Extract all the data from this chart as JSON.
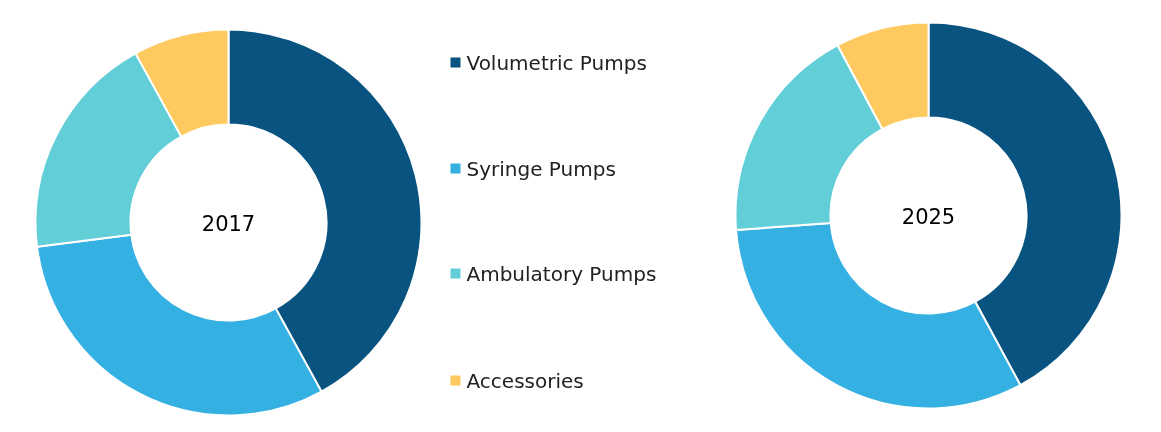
{
  "chart_data": {
    "type": "donut",
    "categories": [
      "Volumetric Pumps",
      "Syringe Pumps",
      "Ambulatory Pumps",
      "Accessories"
    ],
    "colors": [
      "#08537f",
      "#35b0e3",
      "#62cfd8",
      "#fec95f"
    ],
    "legend": "right",
    "series": [
      {
        "name": "2017",
        "values": [
          42,
          31,
          19,
          8
        ]
      },
      {
        "name": "2025",
        "values": [
          42.1,
          31.7,
          18.4,
          7.8
        ]
      }
    ]
  }
}
